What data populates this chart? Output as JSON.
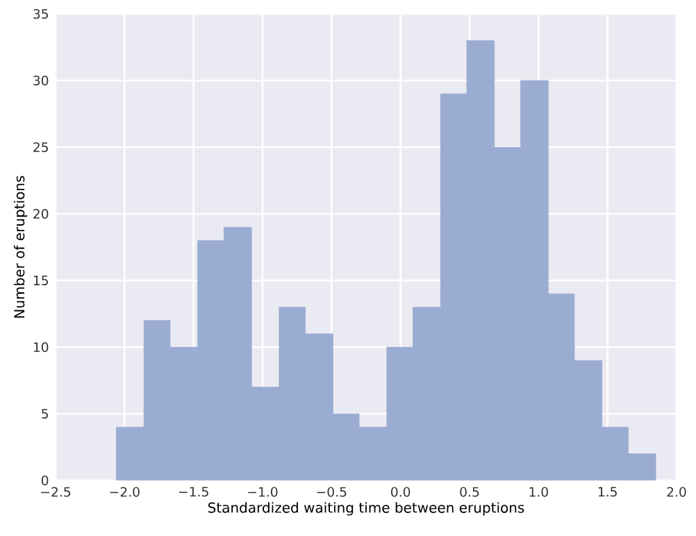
{
  "chart_data": {
    "type": "histogram",
    "xlabel": "Standardized waiting time between eruptions",
    "ylabel": "Number of eruptions",
    "bins": [
      -2.06,
      -1.86,
      -1.67,
      -1.47,
      -1.28,
      -1.08,
      -0.88,
      -0.69,
      -0.49,
      -0.3,
      -0.1,
      0.09,
      0.29,
      0.48,
      0.68,
      0.87,
      1.07,
      1.26,
      1.46,
      1.65,
      1.85
    ],
    "values": [
      4,
      12,
      10,
      18,
      19,
      7,
      13,
      11,
      5,
      4,
      10,
      13,
      29,
      33,
      25,
      30,
      14,
      9,
      4,
      2
    ],
    "color": "#9aacd2",
    "xlim": [
      -2.5,
      2.0
    ],
    "xticks": [
      {
        "value": -2.5,
        "label": "−2.5"
      },
      {
        "value": -2.0,
        "label": "−2.0"
      },
      {
        "value": -1.5,
        "label": "−1.5"
      },
      {
        "value": -1.0,
        "label": "−1.0"
      },
      {
        "value": -0.5,
        "label": "−0.5"
      },
      {
        "value": 0.0,
        "label": "0.0"
      },
      {
        "value": 0.5,
        "label": "0.5"
      },
      {
        "value": 1.0,
        "label": "1.0"
      },
      {
        "value": 1.5,
        "label": "1.5"
      },
      {
        "value": 2.0,
        "label": "2.0"
      }
    ],
    "ylim": [
      0,
      35
    ],
    "yticks": [
      0,
      5,
      10,
      15,
      20,
      25,
      30,
      35
    ],
    "grid": true
  }
}
